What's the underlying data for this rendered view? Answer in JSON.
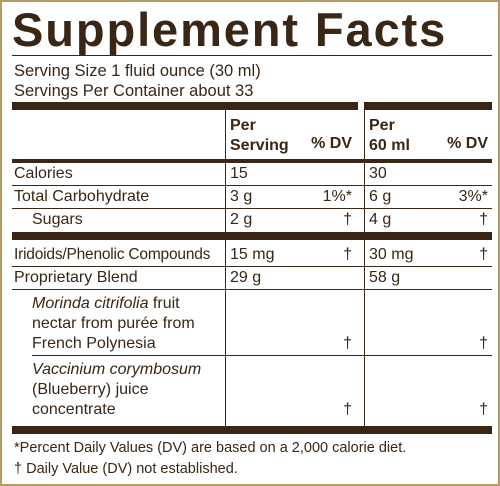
{
  "title": "Supplement Facts",
  "serving_size": "Serving Size 1 fluid ounce (30 ml)",
  "servings_per_container": "Servings Per Container about 33",
  "headers": {
    "col1_line1": "Per",
    "col1_line2": "Serving",
    "col1_dv": "% DV",
    "col2_line1": "Per",
    "col2_line2": "60 ml",
    "col2_dv": "% DV"
  },
  "rows": [
    {
      "name": "Calories",
      "v1": "15",
      "d1": "",
      "v2": "30",
      "d2": ""
    },
    {
      "name": "Total Carbohydrate",
      "v1": "3 g",
      "d1": "1%*",
      "v2": "6 g",
      "d2": "3%*"
    },
    {
      "name": "Sugars",
      "v1": "2 g",
      "d1": "†",
      "v2": "4 g",
      "d2": "†"
    },
    {
      "name": "Iridoids/Phenolic Compounds",
      "v1": "15 mg",
      "d1": "†",
      "v2": "30 mg",
      "d2": "†"
    },
    {
      "name": "Proprietary Blend",
      "v1": "29 g",
      "d1": "",
      "v2": "58 g",
      "d2": ""
    }
  ],
  "blend": [
    {
      "italic": "Morinda citrifolia",
      "line1_rest": " fruit",
      "line2": "nectar from purée from",
      "line3": "French Polynesia",
      "d1": "†",
      "d2": "†"
    },
    {
      "italic": "Vaccinium corymbosum",
      "line2": "(Blueberry) juice",
      "line3": "concentrate",
      "d1": "†",
      "d2": "†"
    }
  ],
  "footnotes": {
    "percent_dv": "*Percent Daily Values (DV) are based on a 2,000 calorie diet.",
    "dagger": "† Daily Value (DV) not established."
  }
}
